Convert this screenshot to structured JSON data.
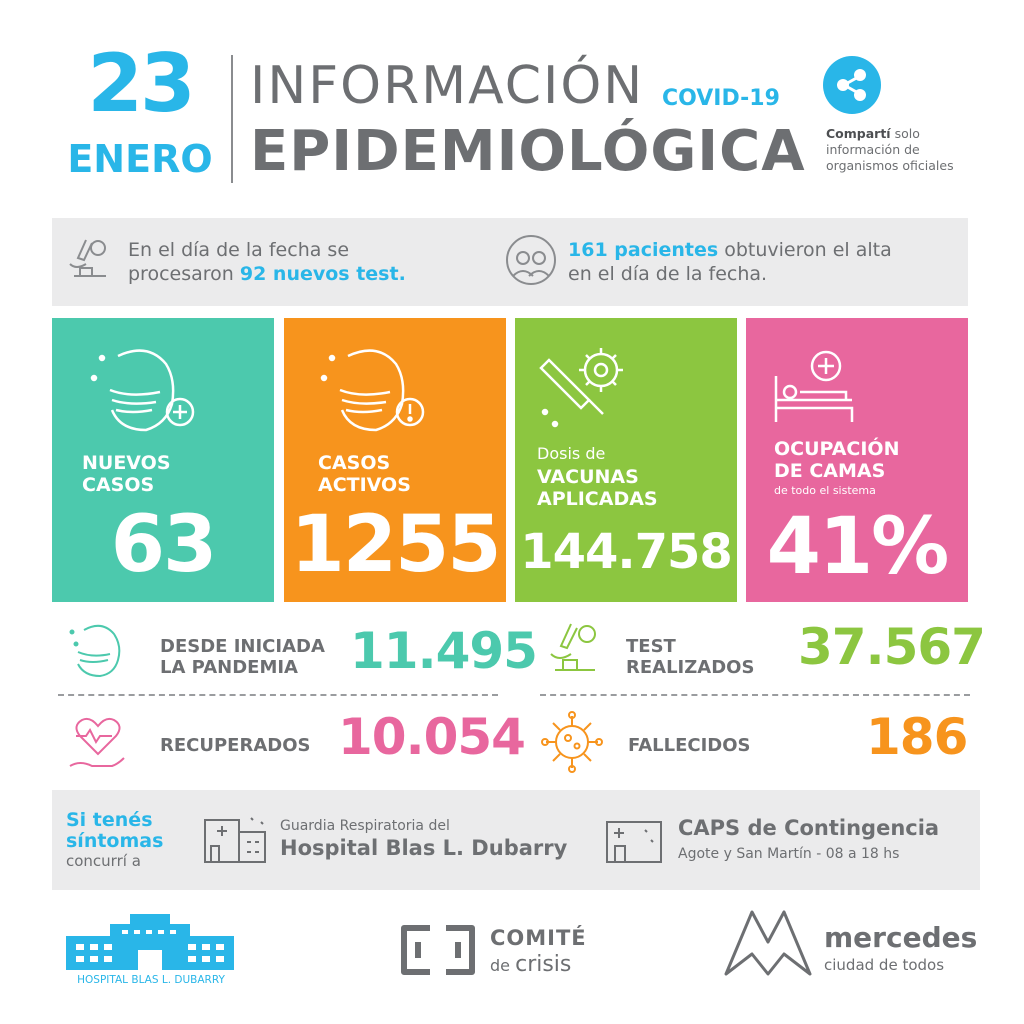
{
  "header": {
    "day": "23",
    "month": "ENERO",
    "title_line1": "INFORMACIÓN",
    "covid_label": "COVID-19",
    "title_line2": "EPIDEMIOLÓGICA",
    "share_strong": "Compartí",
    "share_rest": "solo",
    "share_line2": "información de",
    "share_line3": "organismos oficiales",
    "share_icon": "share-icon"
  },
  "info_strip": {
    "tests_line1": "En el día de la fecha se",
    "tests_prefix": "procesaron ",
    "tests_highlight": "92 nuevos test.",
    "discharge_highlight": "161 pacientes",
    "discharge_rest": " obtuvieron el alta",
    "discharge_line2": "en el día de la fecha."
  },
  "tiles": {
    "new_cases": {
      "label1": "NUEVOS",
      "label2": "CASOS",
      "value": "63",
      "color": "#4cc9ad"
    },
    "active_cases": {
      "label1": "CASOS",
      "label2": "ACTIVOS",
      "value": "1255",
      "color": "#f7941d"
    },
    "vaccines": {
      "label_small": "Dosis de",
      "label1": "VACUNAS",
      "label2": "APLICADAS",
      "value": "144.758",
      "color": "#8cc640"
    },
    "beds": {
      "label1": "OCUPACIÓN",
      "label2": "DE CAMAS",
      "label_small": "de todo el sistema",
      "value": "41%",
      "color": "#e8679e"
    }
  },
  "stats": {
    "since_start": {
      "label1": "DESDE INICIADA",
      "label2": "LA PANDEMIA",
      "value": "11.495",
      "color": "#4cc9ad"
    },
    "tests_done": {
      "label1": "TEST",
      "label2": "REALIZADOS",
      "value": "37.567",
      "color": "#8cc640"
    },
    "recovered": {
      "label": "RECUPERADOS",
      "value": "10.054",
      "color": "#e8679e"
    },
    "deaths": {
      "label": "FALLECIDOS",
      "value": "186",
      "color": "#f7941d"
    }
  },
  "symptoms": {
    "line1": "Si tenés",
    "line2": "síntomas",
    "line3": "concurrí a",
    "place1_small": "Guardia Respiratoria del",
    "place1_big": "Hospital Blas L. Dubarry",
    "place2_big": "CAPS de Contingencia",
    "place2_small": "Agote y San Martín - 08 a 18 hs"
  },
  "footer": {
    "hospital_name": "HOSPITAL BLAS L. DUBARRY",
    "comite_line1": "COMITÉ",
    "comite_de": "de",
    "comite_crisis": "crisis",
    "mercedes_big": "mercedes",
    "mercedes_small": "ciudad de todos"
  }
}
